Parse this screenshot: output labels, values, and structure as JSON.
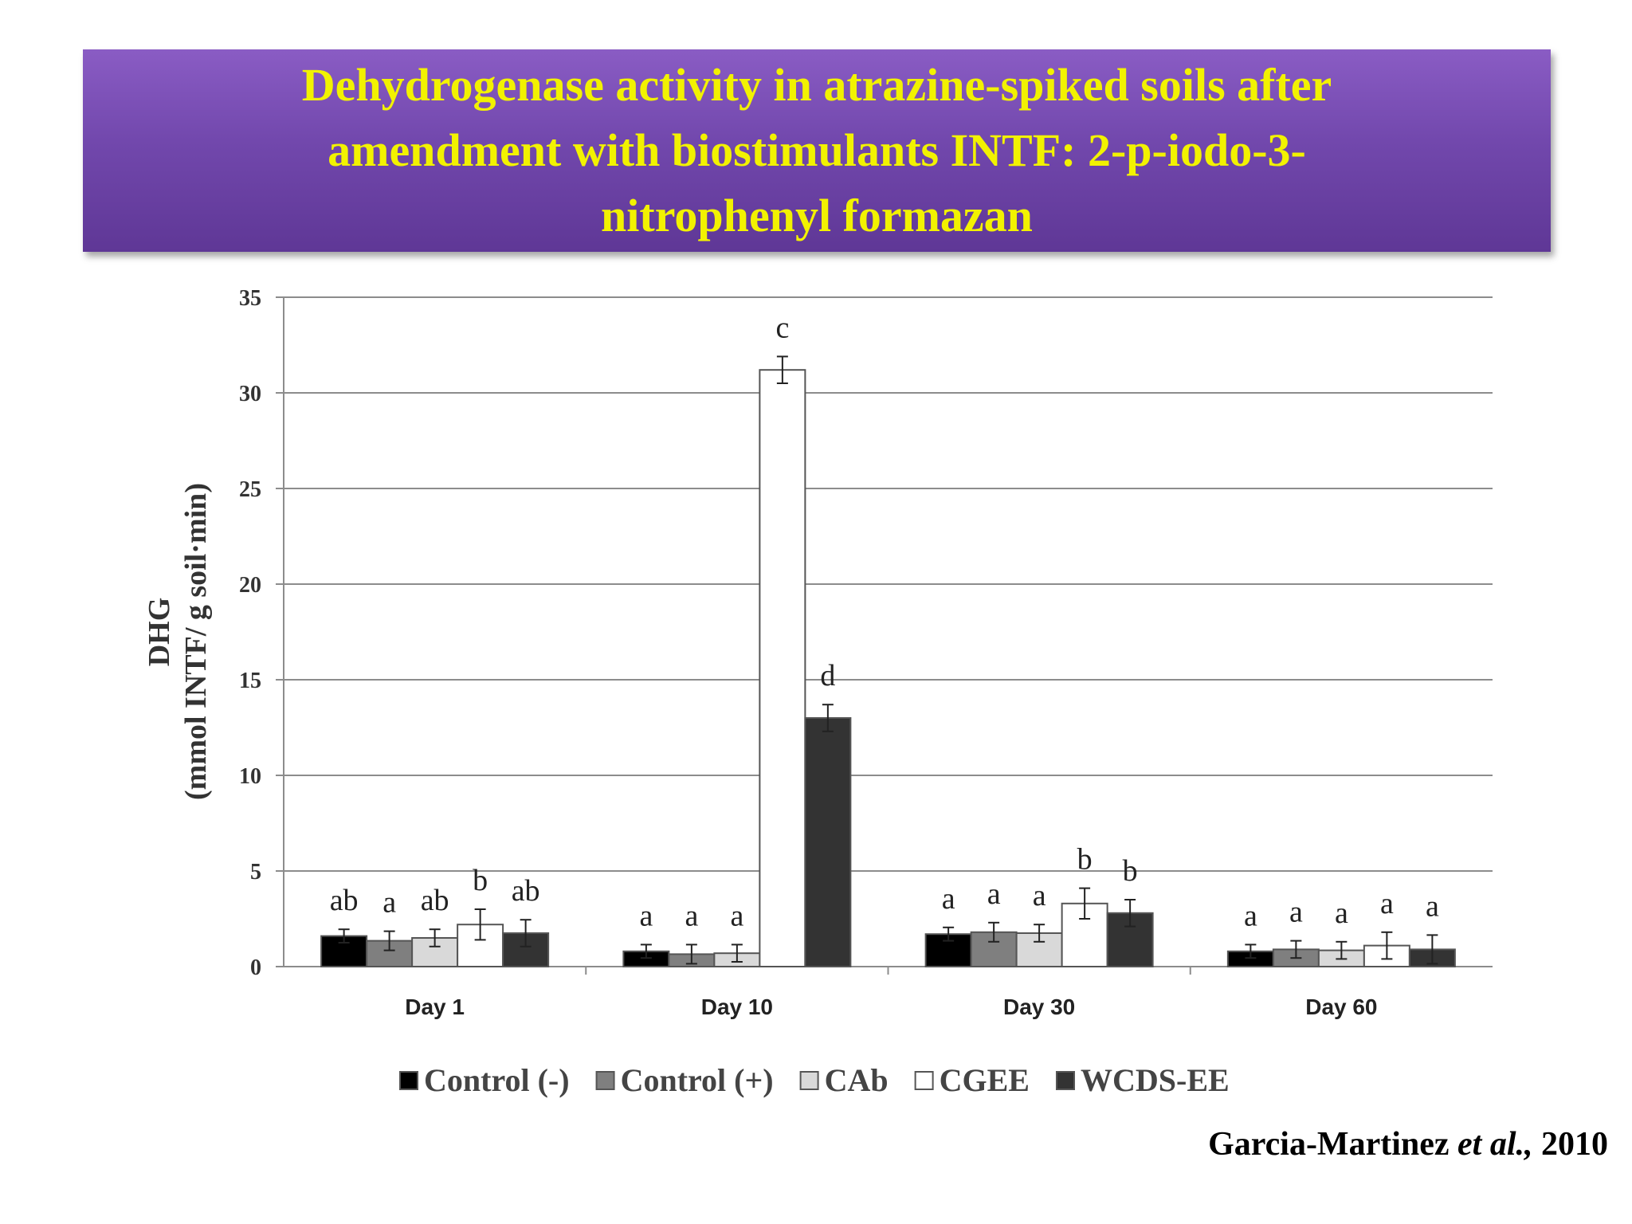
{
  "title": "Dehydrogenase activity in atrazine-spiked soils after\namendment with biostimulants  INTF: 2-p-iodo-3-\nnitrophenyl formazan",
  "citation": {
    "authors": "Garcia-Martinez ",
    "etal": "et al.,",
    "year": " 2010"
  },
  "chart_data": {
    "type": "bar",
    "categories": [
      "Day 1",
      "Day 10",
      "Day 30",
      "Day 60"
    ],
    "ylabel_line1": "DHG",
    "ylabel_line2": "(mmol INTF/ g soil·min)",
    "ylim": [
      0,
      35
    ],
    "yticks": [
      "0",
      "5",
      "10",
      "15",
      "20",
      "25",
      "30",
      "35"
    ],
    "grid": true,
    "legend_position": "bottom",
    "series": [
      {
        "name": "Control (-)",
        "color": "#000000",
        "values": [
          1.6,
          0.8,
          1.7,
          0.8
        ],
        "errors": [
          0.35,
          0.35,
          0.35,
          0.35
        ],
        "letters": [
          "ab",
          "a",
          "a",
          "a"
        ]
      },
      {
        "name": "Control (+)",
        "color": "#7f7f7f",
        "values": [
          1.35,
          0.65,
          1.8,
          0.9
        ],
        "errors": [
          0.5,
          0.5,
          0.5,
          0.45
        ],
        "letters": [
          "a",
          "a",
          "a",
          "a"
        ]
      },
      {
        "name": "CAb",
        "color": "#d9d9d9",
        "values": [
          1.5,
          0.7,
          1.75,
          0.85
        ],
        "errors": [
          0.45,
          0.45,
          0.45,
          0.45
        ],
        "letters": [
          "ab",
          "a",
          "a",
          "a"
        ]
      },
      {
        "name": "CGEE",
        "color": "#ffffff",
        "values": [
          2.2,
          31.2,
          3.3,
          1.1
        ],
        "errors": [
          0.8,
          0.7,
          0.8,
          0.7
        ],
        "letters": [
          "b",
          "c",
          "b",
          "a"
        ]
      },
      {
        "name": "WCDS-EE",
        "color": "#333333",
        "values": [
          1.75,
          13.0,
          2.8,
          0.9
        ],
        "errors": [
          0.7,
          0.7,
          0.7,
          0.75
        ],
        "letters": [
          "ab",
          "d",
          "b",
          "a"
        ]
      }
    ]
  }
}
